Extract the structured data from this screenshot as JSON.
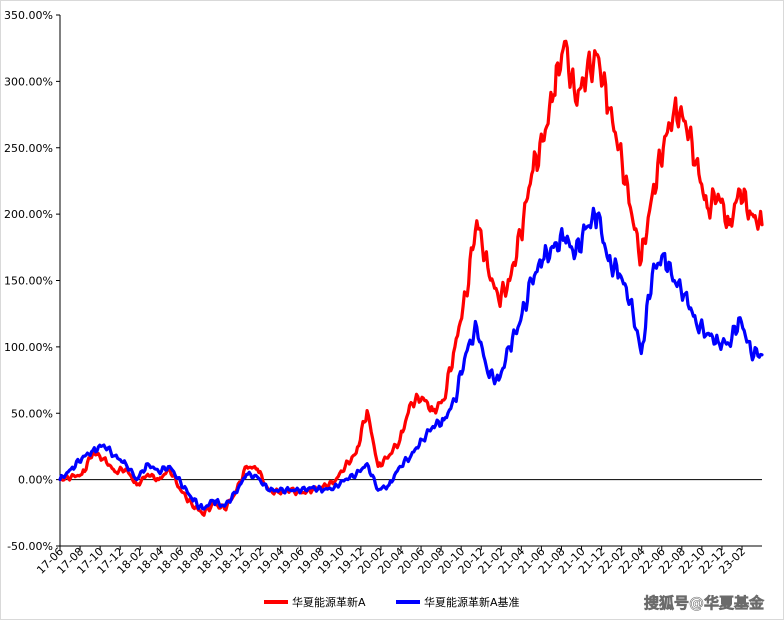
{
  "chart_data": {
    "type": "line",
    "title": "",
    "xlabel": "",
    "ylabel": "",
    "y_tick_labels": [
      "-50.00%",
      "0.00%",
      "50.00%",
      "100.00%",
      "150.00%",
      "200.00%",
      "250.00%",
      "300.00%",
      "350.00%"
    ],
    "ylim": [
      -50,
      350
    ],
    "x_tick_labels": [
      "17-06",
      "17-08",
      "17-10",
      "17-12",
      "18-02",
      "18-04",
      "18-06",
      "18-08",
      "18-10",
      "18-12",
      "19-02",
      "19-04",
      "19-06",
      "19-08",
      "19-10",
      "19-12",
      "20-02",
      "20-04",
      "20-06",
      "20-08",
      "20-10",
      "20-12",
      "21-02",
      "21-04",
      "21-06",
      "21-08",
      "21-10",
      "21-12",
      "22-02",
      "22-04",
      "22-06",
      "22-08",
      "22-10",
      "22-12",
      "23-02"
    ],
    "grid": false,
    "legend": "bottom",
    "series": [
      {
        "name": "华夏能源革新A",
        "color": "#ff0000",
        "points": [
          [
            0,
            0
          ],
          [
            1,
            2
          ],
          [
            2,
            4
          ],
          [
            3,
            20
          ],
          [
            4,
            16
          ],
          [
            5,
            6
          ],
          [
            6,
            8
          ],
          [
            7,
            -4
          ],
          [
            8,
            4
          ],
          [
            9,
            0
          ],
          [
            10,
            8
          ],
          [
            11,
            -8
          ],
          [
            12,
            -18
          ],
          [
            13,
            -26
          ],
          [
            14,
            -18
          ],
          [
            15,
            -22
          ],
          [
            16,
            -10
          ],
          [
            17,
            10
          ],
          [
            18,
            8
          ],
          [
            19,
            -8
          ],
          [
            20,
            -10
          ],
          [
            21,
            -8
          ],
          [
            22,
            -10
          ],
          [
            23,
            -8
          ],
          [
            24,
            -5
          ],
          [
            25,
            -2
          ],
          [
            26,
            10
          ],
          [
            27,
            20
          ],
          [
            28,
            52
          ],
          [
            29,
            10
          ],
          [
            30,
            18
          ],
          [
            31,
            30
          ],
          [
            32,
            58
          ],
          [
            33,
            62
          ],
          [
            34,
            52
          ],
          [
            35,
            60
          ],
          [
            36,
            100
          ],
          [
            37,
            140
          ],
          [
            38,
            195
          ],
          [
            39,
            160
          ],
          [
            40,
            135
          ],
          [
            41,
            150
          ],
          [
            42,
            185
          ],
          [
            43,
            230
          ],
          [
            44,
            255
          ],
          [
            45,
            290
          ],
          [
            46,
            330
          ],
          [
            47,
            285
          ],
          [
            48,
            305
          ],
          [
            49,
            320
          ],
          [
            50,
            280
          ],
          [
            51,
            250
          ],
          [
            52,
            205
          ],
          [
            53,
            165
          ],
          [
            54,
            215
          ],
          [
            55,
            250
          ],
          [
            56,
            280
          ],
          [
            57,
            270
          ],
          [
            58,
            240
          ],
          [
            59,
            205
          ],
          [
            60,
            215
          ],
          [
            61,
            192
          ],
          [
            62,
            218
          ],
          [
            63,
            200
          ],
          [
            64,
            192
          ]
        ]
      },
      {
        "name": "华夏能源革新A基准",
        "color": "#0000ff",
        "points": [
          [
            0,
            0
          ],
          [
            1,
            8
          ],
          [
            2,
            16
          ],
          [
            3,
            22
          ],
          [
            4,
            26
          ],
          [
            5,
            18
          ],
          [
            6,
            12
          ],
          [
            7,
            0
          ],
          [
            8,
            12
          ],
          [
            9,
            6
          ],
          [
            10,
            10
          ],
          [
            11,
            -2
          ],
          [
            12,
            -14
          ],
          [
            13,
            -22
          ],
          [
            14,
            -16
          ],
          [
            15,
            -20
          ],
          [
            16,
            -10
          ],
          [
            17,
            4
          ],
          [
            18,
            2
          ],
          [
            19,
            -8
          ],
          [
            20,
            -8
          ],
          [
            21,
            -8
          ],
          [
            22,
            -8
          ],
          [
            23,
            -6
          ],
          [
            24,
            -8
          ],
          [
            25,
            -6
          ],
          [
            26,
            0
          ],
          [
            27,
            4
          ],
          [
            28,
            12
          ],
          [
            29,
            -8
          ],
          [
            30,
            -4
          ],
          [
            31,
            10
          ],
          [
            32,
            18
          ],
          [
            33,
            30
          ],
          [
            34,
            40
          ],
          [
            35,
            45
          ],
          [
            36,
            60
          ],
          [
            37,
            95
          ],
          [
            38,
            115
          ],
          [
            39,
            80
          ],
          [
            40,
            75
          ],
          [
            41,
            100
          ],
          [
            42,
            120
          ],
          [
            43,
            150
          ],
          [
            44,
            165
          ],
          [
            45,
            175
          ],
          [
            46,
            182
          ],
          [
            47,
            170
          ],
          [
            48,
            190
          ],
          [
            49,
            200
          ],
          [
            50,
            165
          ],
          [
            51,
            155
          ],
          [
            52,
            135
          ],
          [
            53,
            95
          ],
          [
            54,
            155
          ],
          [
            55,
            170
          ],
          [
            56,
            150
          ],
          [
            57,
            140
          ],
          [
            58,
            118
          ],
          [
            59,
            110
          ],
          [
            60,
            104
          ],
          [
            61,
            102
          ],
          [
            62,
            122
          ],
          [
            63,
            96
          ],
          [
            64,
            94
          ]
        ]
      }
    ]
  },
  "watermark": "搜狐号@华夏基金"
}
